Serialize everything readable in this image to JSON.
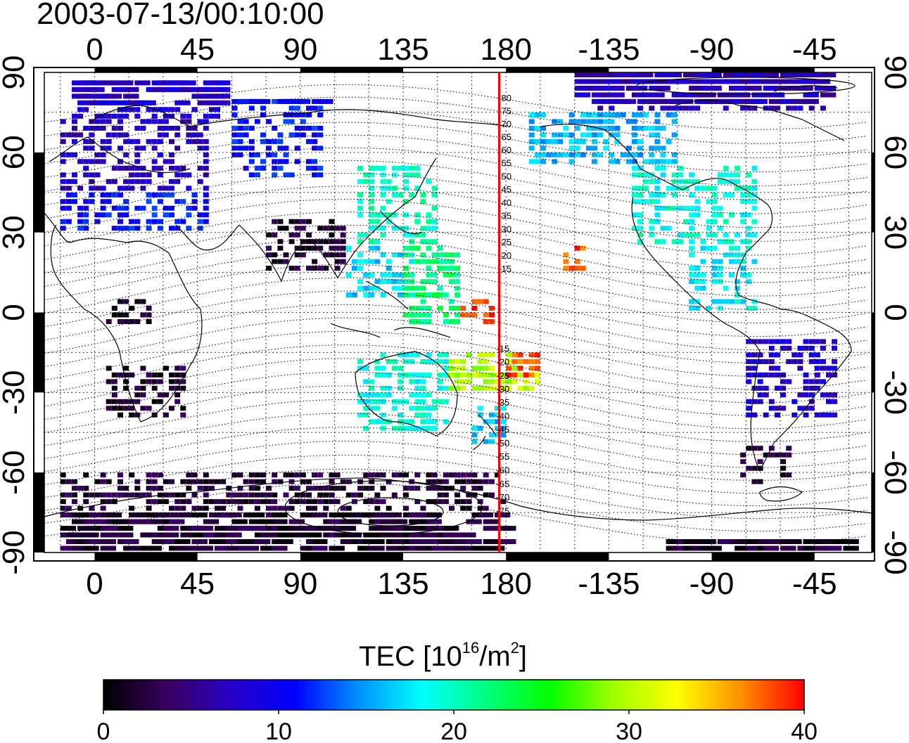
{
  "map": {
    "title": "2003-07-13/00:10:00",
    "projection": "equirectangular",
    "lon_range": [
      -22,
      340
    ],
    "lat_range": [
      -90,
      90
    ],
    "x_tick_labels_top": [
      "0",
      "45",
      "90",
      "135",
      "180",
      "-135",
      "-90",
      "-45"
    ],
    "x_tick_labels_bottom": [
      "0",
      "45",
      "90",
      "135",
      "180",
      "-135",
      "-90",
      "-45"
    ],
    "y_tick_labels_left": [
      "90",
      "60",
      "30",
      "0",
      "-30",
      "-60",
      "-90"
    ],
    "y_tick_labels_right": [
      "90",
      "60",
      "30",
      "0",
      "-30",
      "-60",
      "-90"
    ],
    "grid": "dotted every 15 degrees",
    "marker_line": {
      "longitude": 177,
      "color": "#ff0000"
    },
    "mag_lat_labels_north": [
      "80",
      "75",
      "70",
      "65",
      "60",
      "55",
      "50",
      "45",
      "40",
      "35",
      "30",
      "25",
      "20",
      "15"
    ],
    "mag_lat_labels_south": [
      "-15",
      "-20",
      "-25",
      "-30",
      "-35",
      "-40",
      "-45",
      "-50",
      "-55",
      "-60",
      "-65",
      "-70",
      "-75"
    ]
  },
  "colorbar": {
    "title_main": "TEC  [10",
    "title_exp1": "16",
    "title_mid": "/m",
    "title_exp2": "2",
    "title_end": "]",
    "min": 0,
    "max": 40,
    "tick_labels": [
      "0",
      "10",
      "20",
      "30",
      "40"
    ],
    "colors": [
      "#000000",
      "#3a0060",
      "#2800c8",
      "#0000ff",
      "#0090ff",
      "#00ffff",
      "#00ff80",
      "#00ff00",
      "#a0ff00",
      "#ffff00",
      "#ff9000",
      "#ff0000"
    ]
  },
  "chart_data": {
    "type": "heatmap",
    "title": "2003-07-13/00:10:00",
    "value_label": "TEC [10^16/m^2]",
    "value_range": [
      0,
      40
    ],
    "regions": [
      {
        "lon": [
          -15,
          50
        ],
        "lat": [
          45,
          72
        ],
        "tec": 7
      },
      {
        "lon": [
          -15,
          50
        ],
        "lat": [
          30,
          45
        ],
        "tec": 11
      },
      {
        "lon": [
          -10,
          55
        ],
        "lat": [
          72,
          85
        ],
        "tec": 8
      },
      {
        "lon": [
          60,
          100
        ],
        "lat": [
          50,
          80
        ],
        "tec": 11
      },
      {
        "lon": [
          75,
          110
        ],
        "lat": [
          15,
          35
        ],
        "tec": 2
      },
      {
        "lon": [
          115,
          150
        ],
        "lat": [
          25,
          55
        ],
        "tec": 20
      },
      {
        "lon": [
          110,
          140
        ],
        "lat": [
          5,
          25
        ],
        "tec": 17
      },
      {
        "lon": [
          135,
          160
        ],
        "lat": [
          -5,
          25
        ],
        "tec": 22
      },
      {
        "lon": [
          160,
          175
        ],
        "lat": [
          -5,
          5
        ],
        "tec": 39
      },
      {
        "lon": [
          155,
          195
        ],
        "lat": [
          -30,
          -15
        ],
        "tec": 30
      },
      {
        "lon": [
          180,
          195
        ],
        "lat": [
          -25,
          -15
        ],
        "tec": 38
      },
      {
        "lon": [
          115,
          155
        ],
        "lat": [
          -45,
          -15
        ],
        "tec": 19
      },
      {
        "lon": [
          165,
          180
        ],
        "lat": [
          -50,
          -35
        ],
        "tec": 16
      },
      {
        "lon": [
          205,
          215
        ],
        "lat": [
          15,
          25
        ],
        "tec": 38
      },
      {
        "lon": [
          190,
          255
        ],
        "lat": [
          55,
          75
        ],
        "tec": 16
      },
      {
        "lon": [
          235,
          290
        ],
        "lat": [
          25,
          55
        ],
        "tec": 19
      },
      {
        "lon": [
          210,
          320
        ],
        "lat": [
          75,
          88
        ],
        "tec": 7
      },
      {
        "lon": [
          260,
          290
        ],
        "lat": [
          0,
          25
        ],
        "tec": 18
      },
      {
        "lon": [
          285,
          325
        ],
        "lat": [
          -40,
          -10
        ],
        "tec": 8
      },
      {
        "lon": [
          280,
          305
        ],
        "lat": [
          -65,
          -50
        ],
        "tec": 2
      },
      {
        "lon": [
          5,
          40
        ],
        "lat": [
          -40,
          -20
        ],
        "tec": 2
      },
      {
        "lon": [
          5,
          25
        ],
        "lat": [
          -5,
          5
        ],
        "tec": 1
      },
      {
        "lon": [
          -15,
          180
        ],
        "lat": [
          -90,
          -60
        ],
        "tec": 2
      },
      {
        "lon": [
          250,
          330
        ],
        "lat": [
          -90,
          -85
        ],
        "tec": 2
      }
    ]
  }
}
